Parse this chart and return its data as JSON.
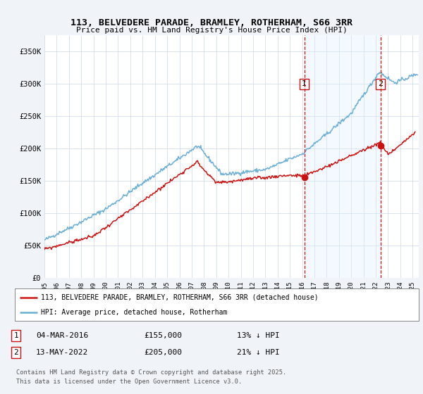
{
  "title1": "113, BELVEDERE PARADE, BRAMLEY, ROTHERHAM, S66 3RR",
  "title2": "Price paid vs. HM Land Registry's House Price Index (HPI)",
  "ylabel_ticks": [
    "£0",
    "£50K",
    "£100K",
    "£150K",
    "£200K",
    "£250K",
    "£300K",
    "£350K"
  ],
  "ytick_values": [
    0,
    50000,
    100000,
    150000,
    200000,
    250000,
    300000,
    350000
  ],
  "ylim": [
    0,
    375000
  ],
  "xlim_start": 1995.0,
  "xlim_end": 2025.5,
  "hpi_color": "#6baed6",
  "price_color": "#cc1111",
  "marker1_date": 2016.17,
  "marker1_price": 155000,
  "marker1_label": "04-MAR-2016",
  "marker1_pct": "13% ↓ HPI",
  "marker2_date": 2022.37,
  "marker2_price": 205000,
  "marker2_label": "13-MAY-2022",
  "marker2_pct": "21% ↓ HPI",
  "legend_line1": "113, BELVEDERE PARADE, BRAMLEY, ROTHERHAM, S66 3RR (detached house)",
  "legend_line2": "HPI: Average price, detached house, Rotherham",
  "footnote1": "Contains HM Land Registry data © Crown copyright and database right 2025.",
  "footnote2": "This data is licensed under the Open Government Licence v3.0.",
  "background_color": "#f0f4f8",
  "plot_bg": "#ffffff",
  "span_color": "#ddeeff",
  "annotation_box_color": "#cc1111",
  "dashed_line_color": "#cc1111"
}
